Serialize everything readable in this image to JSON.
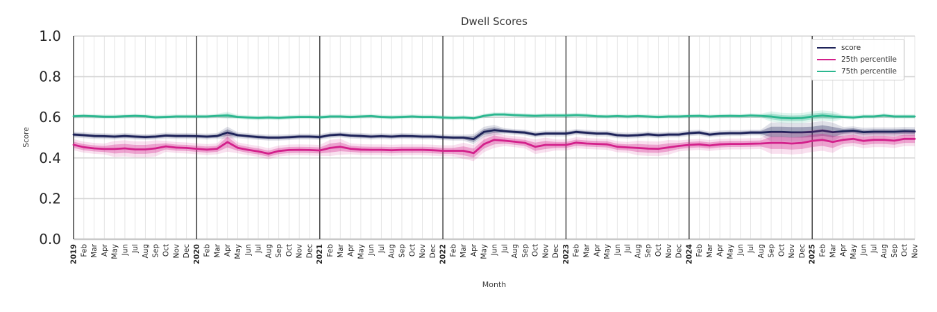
{
  "title": "Dwell Scores",
  "axes": {
    "xlabel": "Month",
    "ylabel": "Score"
  },
  "colors": {
    "score_line": "#1e2359",
    "p25_line": "#d3208b",
    "p75_line": "#2bb78f",
    "year_line": "#333333",
    "minor_grid": "#e4e4e4",
    "major_grid": "#d6d6d6",
    "axis_line": "#c9c9c9",
    "tick_text": "#262626"
  },
  "chart_data": {
    "type": "line",
    "title": "Dwell Scores",
    "xlabel": "Month",
    "ylabel": "Score",
    "ylim": [
      0.0,
      1.0
    ],
    "yticks": [
      0.0,
      0.2,
      0.4,
      0.6,
      0.8,
      1.0
    ],
    "grid": true,
    "legend_position": "upper right",
    "year_indices": [
      0,
      12,
      24,
      36,
      48,
      60,
      72
    ],
    "x_labels": [
      "2019",
      "Feb",
      "Mar",
      "Apr",
      "May",
      "Jun",
      "Jul",
      "Aug",
      "Sep",
      "Oct",
      "Nov",
      "Dec",
      "2020",
      "Feb",
      "Mar",
      "Apr",
      "May",
      "Jun",
      "Jul",
      "Aug",
      "Sep",
      "Oct",
      "Nov",
      "Dec",
      "2021",
      "Feb",
      "Mar",
      "Apr",
      "May",
      "Jun",
      "Jul",
      "Aug",
      "Sep",
      "Oct",
      "Nov",
      "Dec",
      "2022",
      "Feb",
      "Mar",
      "Apr",
      "May",
      "Jun",
      "Jul",
      "Aug",
      "Sep",
      "Oct",
      "Nov",
      "Dec",
      "2023",
      "Feb",
      "Mar",
      "Apr",
      "May",
      "Jun",
      "Jul",
      "Aug",
      "Sep",
      "Oct",
      "Nov",
      "Dec",
      "2024",
      "Feb",
      "Mar",
      "Apr",
      "May",
      "Jun",
      "Jul",
      "Aug",
      "Sep",
      "Oct",
      "Nov",
      "Dec",
      "2025",
      "Feb",
      "Mar",
      "Apr",
      "May",
      "Jun",
      "Jul",
      "Aug",
      "Sep",
      "Oct",
      "Nov"
    ],
    "series": [
      {
        "name": "score",
        "color": "#1e2359",
        "band_base": 0.008,
        "band_wide": [
          {
            "from": 15,
            "to": 15,
            "w": 0.016
          },
          {
            "from": 39,
            "to": 41,
            "w": 0.014
          },
          {
            "from": 68,
            "to": 74,
            "w": 0.026
          },
          {
            "from": 75,
            "to": 82,
            "w": 0.012
          }
        ],
        "values": [
          0.515,
          0.512,
          0.508,
          0.507,
          0.505,
          0.508,
          0.505,
          0.503,
          0.505,
          0.51,
          0.508,
          0.508,
          0.507,
          0.505,
          0.508,
          0.525,
          0.512,
          0.507,
          0.503,
          0.5,
          0.5,
          0.502,
          0.505,
          0.505,
          0.503,
          0.512,
          0.515,
          0.51,
          0.508,
          0.505,
          0.507,
          0.505,
          0.508,
          0.507,
          0.505,
          0.505,
          0.502,
          0.5,
          0.5,
          0.493,
          0.528,
          0.537,
          0.532,
          0.528,
          0.525,
          0.515,
          0.52,
          0.52,
          0.52,
          0.528,
          0.524,
          0.52,
          0.52,
          0.512,
          0.51,
          0.512,
          0.516,
          0.512,
          0.515,
          0.515,
          0.522,
          0.525,
          0.515,
          0.52,
          0.522,
          0.522,
          0.525,
          0.525,
          0.528,
          0.528,
          0.526,
          0.526,
          0.528,
          0.535,
          0.527,
          0.531,
          0.534,
          0.527,
          0.529,
          0.529,
          0.529,
          0.531,
          0.53
        ]
      },
      {
        "name": "25th percentile",
        "color": "#d3208b",
        "band_base": 0.015,
        "band_wide": [
          {
            "from": 4,
            "to": 8,
            "w": 0.022
          },
          {
            "from": 15,
            "to": 15,
            "w": 0.026
          },
          {
            "from": 25,
            "to": 26,
            "w": 0.022
          },
          {
            "from": 38,
            "to": 41,
            "w": 0.022
          },
          {
            "from": 45,
            "to": 46,
            "w": 0.02
          },
          {
            "from": 55,
            "to": 58,
            "w": 0.02
          },
          {
            "from": 68,
            "to": 74,
            "w": 0.03
          },
          {
            "from": 75,
            "to": 82,
            "w": 0.02
          }
        ],
        "values": [
          0.465,
          0.453,
          0.447,
          0.444,
          0.444,
          0.447,
          0.442,
          0.442,
          0.447,
          0.457,
          0.451,
          0.449,
          0.445,
          0.441,
          0.445,
          0.478,
          0.45,
          0.44,
          0.432,
          0.421,
          0.434,
          0.439,
          0.44,
          0.439,
          0.437,
          0.449,
          0.455,
          0.445,
          0.441,
          0.44,
          0.44,
          0.438,
          0.44,
          0.44,
          0.44,
          0.438,
          0.435,
          0.435,
          0.435,
          0.424,
          0.468,
          0.489,
          0.485,
          0.48,
          0.474,
          0.455,
          0.464,
          0.464,
          0.464,
          0.475,
          0.471,
          0.469,
          0.467,
          0.455,
          0.452,
          0.449,
          0.446,
          0.445,
          0.452,
          0.459,
          0.464,
          0.467,
          0.461,
          0.467,
          0.469,
          0.469,
          0.47,
          0.471,
          0.474,
          0.474,
          0.471,
          0.474,
          0.484,
          0.489,
          0.479,
          0.489,
          0.494,
          0.484,
          0.489,
          0.489,
          0.485,
          0.494,
          0.494
        ]
      },
      {
        "name": "75th percentile",
        "color": "#2bb78f",
        "band_base": 0.006,
        "band_wide": [
          {
            "from": 15,
            "to": 15,
            "w": 0.01
          },
          {
            "from": 68,
            "to": 74,
            "w": 0.014
          }
        ],
        "values": [
          0.605,
          0.607,
          0.605,
          0.603,
          0.603,
          0.605,
          0.607,
          0.605,
          0.6,
          0.602,
          0.604,
          0.604,
          0.604,
          0.604,
          0.607,
          0.609,
          0.602,
          0.599,
          0.597,
          0.599,
          0.597,
          0.6,
          0.602,
          0.602,
          0.6,
          0.604,
          0.604,
          0.602,
          0.604,
          0.606,
          0.602,
          0.6,
          0.602,
          0.604,
          0.602,
          0.602,
          0.599,
          0.597,
          0.599,
          0.595,
          0.607,
          0.614,
          0.614,
          0.611,
          0.609,
          0.607,
          0.609,
          0.609,
          0.609,
          0.611,
          0.609,
          0.605,
          0.604,
          0.606,
          0.604,
          0.606,
          0.604,
          0.602,
          0.604,
          0.604,
          0.606,
          0.607,
          0.604,
          0.606,
          0.607,
          0.606,
          0.609,
          0.607,
          0.604,
          0.597,
          0.595,
          0.596,
          0.604,
          0.609,
          0.604,
          0.602,
          0.599,
          0.604,
          0.604,
          0.609,
          0.604,
          0.604,
          0.604
        ]
      }
    ]
  }
}
